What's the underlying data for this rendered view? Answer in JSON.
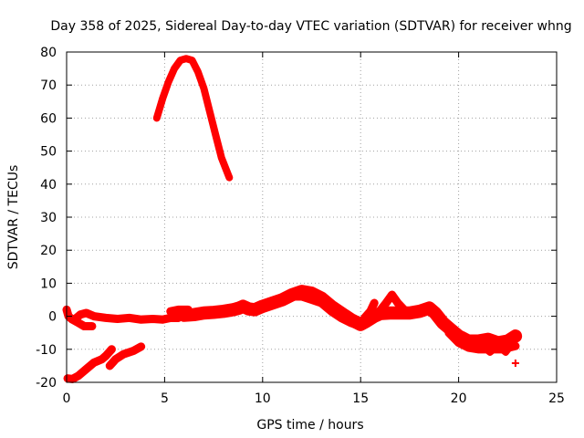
{
  "chart_data": {
    "type": "scatter",
    "title": "Day 358 of 2025, Sidereal Day-to-day VTEC variation (SDTVAR) for receiver whng",
    "xlabel": "GPS time / hours",
    "ylabel": "SDTVAR / TECUs",
    "xlim": [
      0,
      25
    ],
    "ylim": [
      -20,
      80
    ],
    "xticks": [
      0,
      5,
      10,
      15,
      20,
      25
    ],
    "yticks": [
      -20,
      -10,
      0,
      10,
      20,
      30,
      40,
      50,
      60,
      70,
      80
    ],
    "grid": true,
    "color": "#ff0000",
    "series": [
      {
        "name": "arc-high",
        "width": 2.2,
        "points": [
          [
            4.6,
            60
          ],
          [
            4.9,
            66
          ],
          [
            5.2,
            71
          ],
          [
            5.5,
            75
          ],
          [
            5.8,
            77.5
          ],
          [
            6.1,
            78
          ],
          [
            6.4,
            77.5
          ],
          [
            6.7,
            74
          ],
          [
            7.0,
            69
          ],
          [
            7.3,
            62
          ],
          [
            7.6,
            55
          ],
          [
            7.9,
            48
          ],
          [
            8.3,
            42
          ]
        ]
      },
      {
        "name": "arc-low-a",
        "width": 2.5,
        "points": [
          [
            0.05,
            -18.8
          ],
          [
            0.3,
            -19
          ],
          [
            0.6,
            -18
          ],
          [
            1.0,
            -16
          ],
          [
            1.4,
            -14
          ],
          [
            1.8,
            -13
          ],
          [
            2.0,
            -12
          ],
          [
            2.3,
            -10
          ]
        ]
      },
      {
        "name": "arc-low-b",
        "width": 2.5,
        "points": [
          [
            2.2,
            -15
          ],
          [
            2.5,
            -13
          ],
          [
            2.9,
            -11.5
          ],
          [
            3.4,
            -10.5
          ],
          [
            3.8,
            -9.2
          ]
        ]
      },
      {
        "name": "band-a",
        "width": 2.5,
        "points": [
          [
            0.0,
            2
          ],
          [
            0.1,
            0
          ],
          [
            0.3,
            -1
          ],
          [
            0.6,
            -2
          ],
          [
            0.9,
            -3
          ],
          [
            1.3,
            -3
          ]
        ]
      },
      {
        "name": "band-b",
        "width": 2.5,
        "points": [
          [
            0.4,
            -1
          ],
          [
            0.7,
            0.5
          ],
          [
            1.0,
            1
          ],
          [
            1.4,
            0
          ],
          [
            2.0,
            -0.5
          ],
          [
            2.6,
            -0.8
          ],
          [
            3.2,
            -0.5
          ],
          [
            3.8,
            -1
          ],
          [
            4.4,
            -0.8
          ],
          [
            4.9,
            -1
          ],
          [
            5.3,
            -0.5
          ],
          [
            5.7,
            -0.5
          ]
        ]
      },
      {
        "name": "band-c",
        "width": 2.5,
        "points": [
          [
            5.3,
            1.5
          ],
          [
            5.7,
            2
          ],
          [
            6.2,
            2
          ]
        ]
      },
      {
        "name": "band-d",
        "width": 4,
        "points": [
          [
            6.0,
            0.3
          ],
          [
            6.5,
            0.5
          ],
          [
            7.0,
            1
          ],
          [
            7.5,
            1.2
          ],
          [
            8.0,
            1.5
          ],
          [
            8.5,
            2
          ],
          [
            8.8,
            2.5
          ],
          [
            9.0,
            3
          ],
          [
            9.3,
            2.2
          ],
          [
            9.6,
            2
          ],
          [
            10.0,
            3
          ],
          [
            10.5,
            4
          ],
          [
            11.0,
            5
          ],
          [
            11.5,
            6.5
          ],
          [
            12.0,
            7.5
          ],
          [
            12.5,
            7
          ],
          [
            13.0,
            5.5
          ],
          [
            13.5,
            3
          ],
          [
            14.0,
            1
          ],
          [
            14.5,
            -1
          ],
          [
            15.0,
            -2.5
          ],
          [
            15.3,
            -1.5
          ],
          [
            15.7,
            0
          ],
          [
            16.0,
            0.8
          ],
          [
            16.5,
            1
          ],
          [
            17.0,
            1
          ],
          [
            17.5,
            1
          ],
          [
            18.0,
            1.5
          ],
          [
            18.5,
            2.5
          ],
          [
            18.8,
            1
          ],
          [
            19.2,
            -2
          ],
          [
            19.6,
            -4
          ],
          [
            20.0,
            -6
          ],
          [
            20.5,
            -7.5
          ],
          [
            21.0,
            -7.5
          ],
          [
            21.5,
            -7
          ],
          [
            22.0,
            -8
          ],
          [
            22.5,
            -7.5
          ],
          [
            22.9,
            -6
          ]
        ]
      },
      {
        "name": "band-e",
        "width": 2.5,
        "points": [
          [
            11.0,
            4.5
          ],
          [
            11.5,
            6
          ],
          [
            12.0,
            6
          ],
          [
            12.5,
            5
          ],
          [
            13.0,
            4
          ],
          [
            13.5,
            1.5
          ],
          [
            14.0,
            -0.5
          ],
          [
            14.5,
            -2
          ],
          [
            15.0,
            -3
          ]
        ]
      },
      {
        "name": "band-f",
        "width": 2.5,
        "points": [
          [
            15.2,
            -0.5
          ],
          [
            15.5,
            1.5
          ],
          [
            15.7,
            4
          ]
        ]
      },
      {
        "name": "band-g",
        "width": 2.5,
        "points": [
          [
            15.5,
            -1
          ],
          [
            15.9,
            1
          ],
          [
            16.3,
            4
          ],
          [
            16.6,
            6.5
          ],
          [
            16.9,
            4
          ],
          [
            17.3,
            1.5
          ]
        ]
      },
      {
        "name": "band-h",
        "width": 2.5,
        "points": [
          [
            19.5,
            -5
          ],
          [
            20.0,
            -8
          ],
          [
            20.5,
            -9.5
          ],
          [
            21.0,
            -10
          ],
          [
            21.6,
            -10
          ],
          [
            22.2,
            -10
          ],
          [
            22.9,
            -9
          ]
        ]
      },
      {
        "name": "band-i",
        "width": 2,
        "points": [
          [
            21.2,
            -9
          ],
          [
            21.6,
            -11
          ],
          [
            22.0,
            -9
          ],
          [
            22.4,
            -11
          ],
          [
            22.8,
            -8
          ]
        ]
      }
    ],
    "markers": [
      [
        22.9,
        -14.2
      ]
    ]
  }
}
